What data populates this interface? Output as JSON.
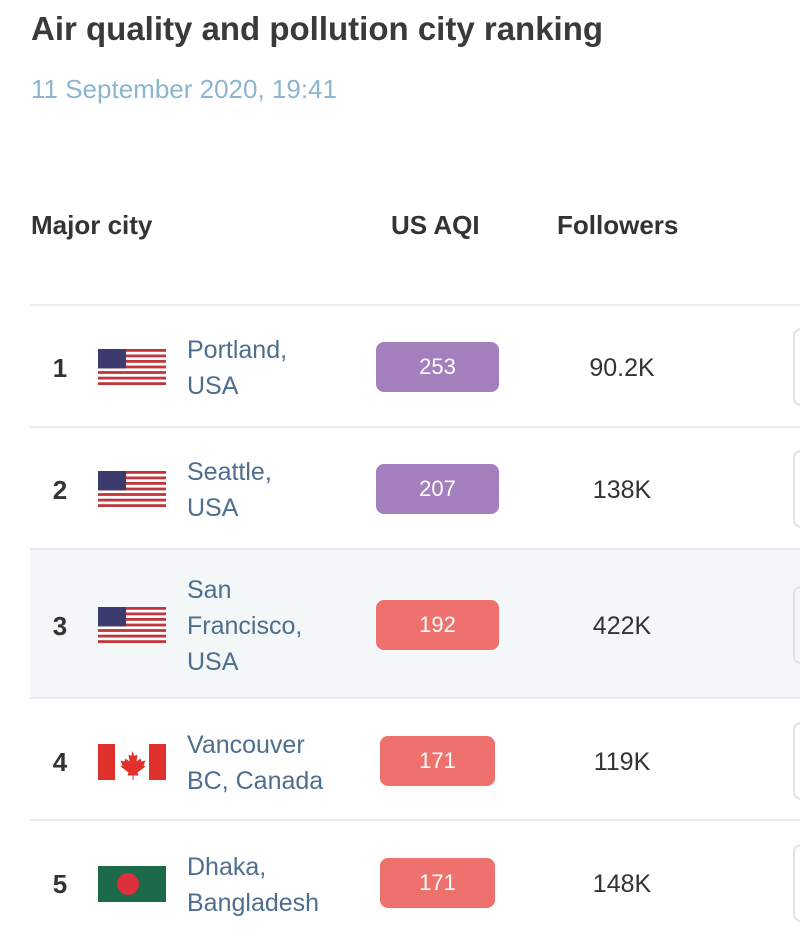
{
  "header": {
    "title": "Air quality and pollution city ranking",
    "date": "11 September 2020, 19:41"
  },
  "table": {
    "columns": [
      "Major city",
      "US AQI",
      "Followers"
    ],
    "rows": [
      {
        "rank": "1",
        "city": [
          "Portland,",
          "USA"
        ],
        "aqi": "253",
        "followers": "90.2K"
      },
      {
        "rank": "2",
        "city": [
          "Seattle,",
          "USA"
        ],
        "aqi": "207",
        "followers": "138K"
      },
      {
        "rank": "3",
        "city": [
          "San",
          "Francisco,",
          "USA"
        ],
        "aqi": "192",
        "followers": "422K"
      },
      {
        "rank": "4",
        "city": [
          "Vancouver",
          "BC, Canada"
        ],
        "aqi": "171",
        "followers": "119K"
      },
      {
        "rank": "5",
        "city": [
          "Dhaka,",
          "Bangladesh"
        ],
        "aqi": "171",
        "followers": "148K"
      }
    ]
  }
}
